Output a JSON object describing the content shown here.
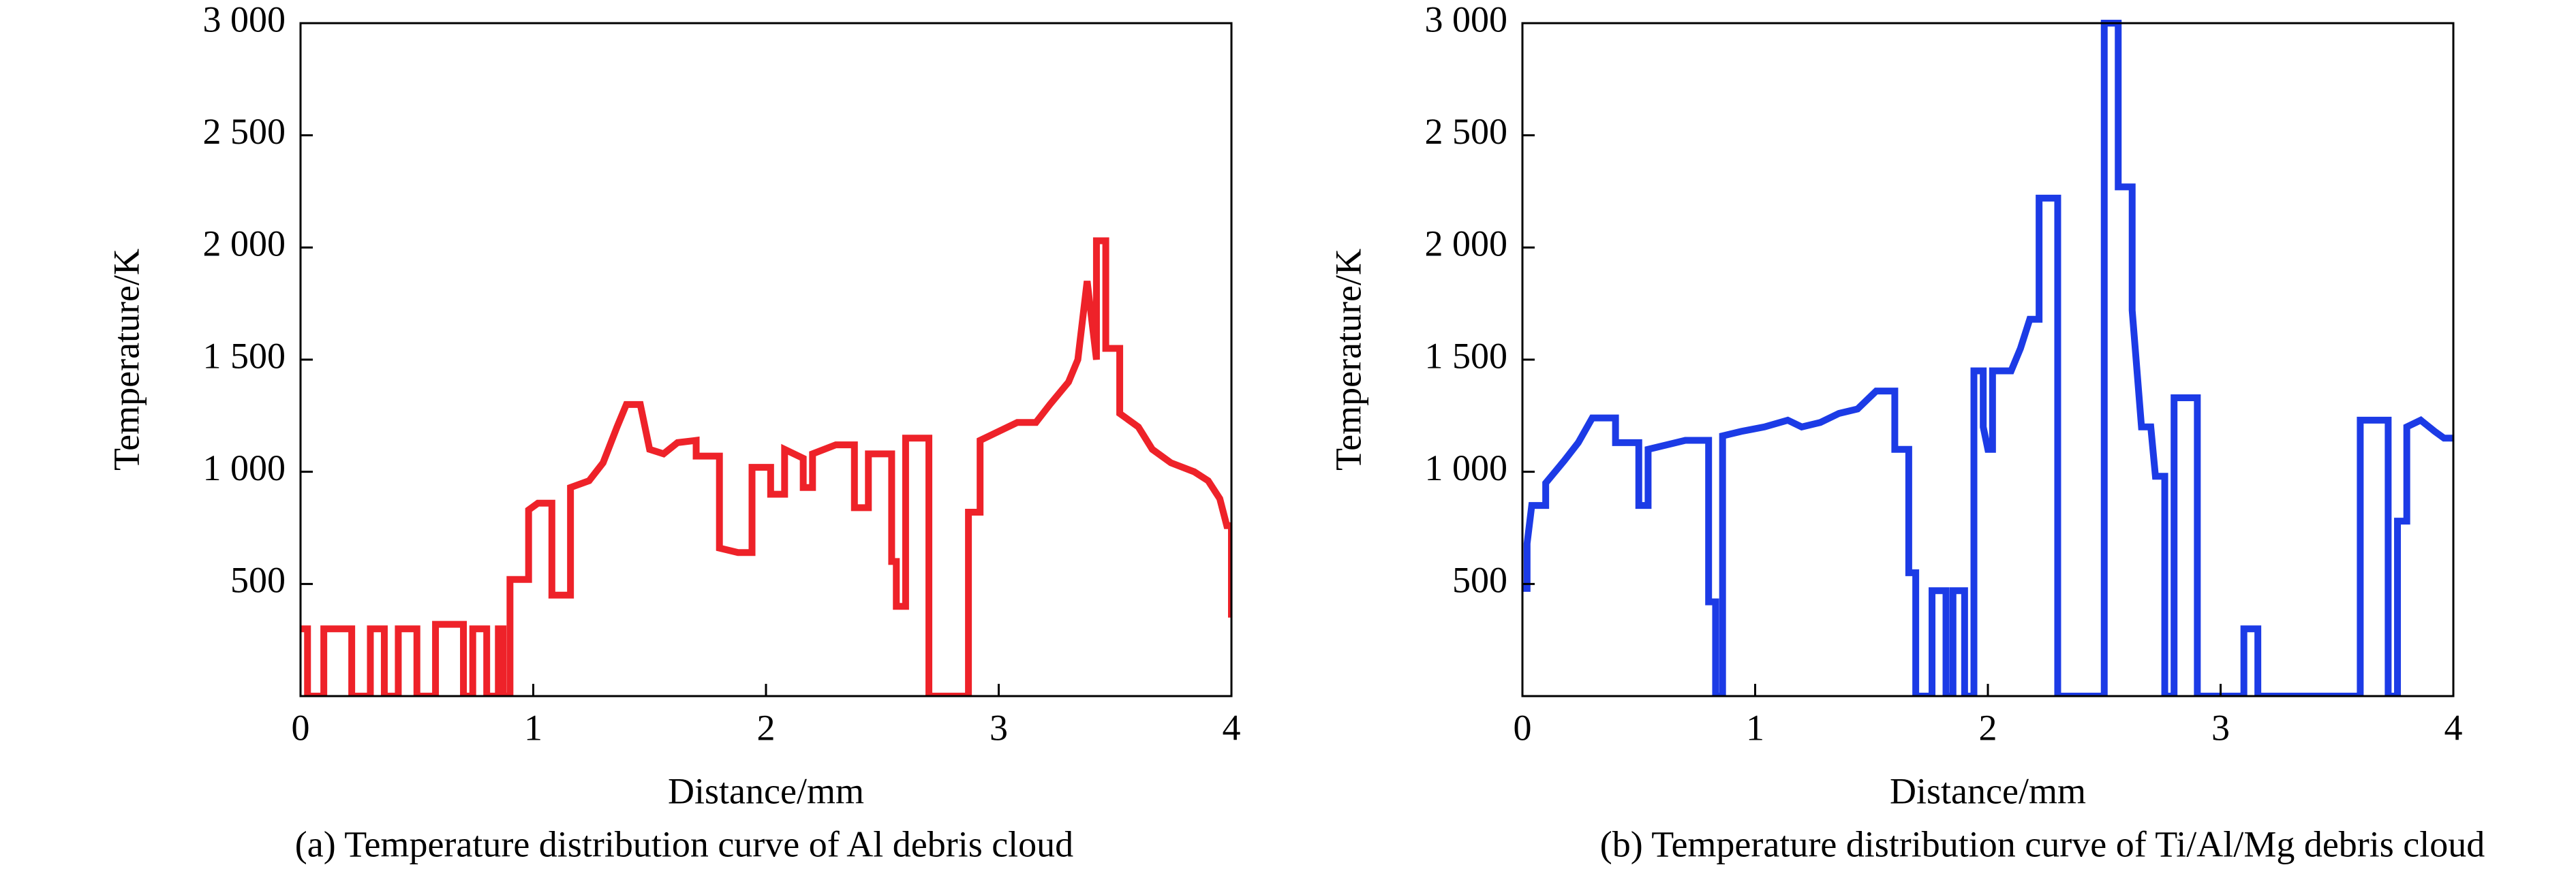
{
  "chart_data": [
    {
      "type": "line",
      "xlabel": "Distance/mm",
      "ylabel": "Temperature/K",
      "caption": "(a) Temperature distribution curve of Al debris cloud",
      "color": "#ee2229",
      "xlim": [
        0,
        4
      ],
      "ylim": [
        0,
        3000
      ],
      "xticks": [
        0,
        1,
        2,
        3,
        4
      ],
      "yticks": [
        500,
        {
          "value": 1000,
          "label": "1 000"
        },
        {
          "value": 1500,
          "label": "1 500"
        },
        {
          "value": 2000,
          "label": "2 000"
        },
        {
          "value": 2500,
          "label": "2 500"
        },
        {
          "value": 3000,
          "label": "3 000"
        }
      ],
      "x": [
        0,
        0.03,
        0.03,
        0.1,
        0.1,
        0.22,
        0.22,
        0.3,
        0.3,
        0.36,
        0.36,
        0.42,
        0.42,
        0.5,
        0.5,
        0.58,
        0.58,
        0.7,
        0.7,
        0.74,
        0.74,
        0.8,
        0.8,
        0.85,
        0.85,
        0.87,
        0.87,
        0.9,
        0.9,
        0.98,
        0.98,
        1.02,
        1.08,
        1.08,
        1.16,
        1.16,
        1.24,
        1.3,
        1.36,
        1.4,
        1.46,
        1.5,
        1.56,
        1.62,
        1.7,
        1.7,
        1.8,
        1.8,
        1.88,
        1.94,
        1.94,
        2.02,
        2.02,
        2.08,
        2.08,
        2.16,
        2.16,
        2.2,
        2.2,
        2.3,
        2.38,
        2.38,
        2.44,
        2.44,
        2.54,
        2.54,
        2.56,
        2.56,
        2.6,
        2.6,
        2.7,
        2.7,
        2.87,
        2.87,
        2.92,
        2.92,
        3.0,
        3.08,
        3.16,
        3.22,
        3.3,
        3.34,
        3.38,
        3.42,
        3.42,
        3.46,
        3.46,
        3.52,
        3.52,
        3.6,
        3.66,
        3.74,
        3.84,
        3.9,
        3.95,
        3.98,
        4.0,
        4.0
      ],
      "values": [
        300,
        300,
        0,
        0,
        300,
        300,
        0,
        0,
        300,
        300,
        0,
        0,
        300,
        300,
        0,
        0,
        320,
        320,
        0,
        0,
        300,
        300,
        0,
        0,
        300,
        300,
        0,
        0,
        520,
        520,
        830,
        860,
        860,
        450,
        450,
        930,
        960,
        1040,
        1200,
        1300,
        1300,
        1100,
        1080,
        1130,
        1140,
        1070,
        1070,
        660,
        640,
        640,
        1020,
        1020,
        900,
        900,
        1100,
        1060,
        930,
        930,
        1080,
        1120,
        1120,
        840,
        840,
        1080,
        1080,
        600,
        600,
        400,
        400,
        1150,
        1150,
        0,
        0,
        820,
        820,
        1140,
        1180,
        1220,
        1220,
        1300,
        1400,
        1500,
        1850,
        1500,
        2030,
        2030,
        1550,
        1550,
        1260,
        1200,
        1100,
        1040,
        1000,
        960,
        880,
        760,
        760,
        350
      ]
    },
    {
      "type": "line",
      "xlabel": "Distance/mm",
      "ylabel": "Temperature/K",
      "caption": "(b) Temperature distribution curve of Ti/Al/Mg debris cloud",
      "color": "#1c3be6",
      "xlim": [
        0,
        4
      ],
      "ylim": [
        0,
        3000
      ],
      "xticks": [
        0,
        1,
        2,
        3,
        4
      ],
      "yticks": [
        500,
        {
          "value": 1000,
          "label": "1 000"
        },
        {
          "value": 1500,
          "label": "1 500"
        },
        {
          "value": 2000,
          "label": "2 000"
        },
        {
          "value": 2500,
          "label": "2 500"
        },
        {
          "value": 3000,
          "label": "3 000"
        }
      ],
      "x": [
        0,
        0.02,
        0.02,
        0.04,
        0.1,
        0.1,
        0.18,
        0.24,
        0.3,
        0.4,
        0.4,
        0.5,
        0.5,
        0.54,
        0.54,
        0.62,
        0.7,
        0.8,
        0.8,
        0.83,
        0.83,
        0.86,
        0.86,
        0.94,
        1.04,
        1.14,
        1.2,
        1.28,
        1.36,
        1.44,
        1.52,
        1.6,
        1.6,
        1.66,
        1.66,
        1.69,
        1.69,
        1.76,
        1.76,
        1.82,
        1.82,
        1.85,
        1.85,
        1.9,
        1.9,
        1.94,
        1.94,
        1.98,
        1.98,
        2.0,
        2.02,
        2.02,
        2.1,
        2.14,
        2.18,
        2.22,
        2.22,
        2.3,
        2.3,
        2.5,
        2.5,
        2.56,
        2.56,
        2.62,
        2.62,
        2.66,
        2.7,
        2.72,
        2.76,
        2.76,
        2.8,
        2.8,
        2.9,
        2.9,
        3.1,
        3.1,
        3.16,
        3.16,
        3.6,
        3.6,
        3.72,
        3.72,
        3.76,
        3.76,
        3.8,
        3.8,
        3.86,
        3.92,
        3.96,
        4.0
      ],
      "values": [
        480,
        480,
        680,
        850,
        850,
        950,
        1050,
        1130,
        1240,
        1240,
        1130,
        1130,
        850,
        850,
        1100,
        1120,
        1140,
        1140,
        420,
        420,
        0,
        0,
        1160,
        1180,
        1200,
        1230,
        1200,
        1220,
        1260,
        1280,
        1360,
        1360,
        1100,
        1100,
        550,
        550,
        0,
        0,
        470,
        470,
        0,
        0,
        470,
        470,
        0,
        0,
        1450,
        1450,
        1200,
        1100,
        1100,
        1450,
        1450,
        1550,
        1680,
        1680,
        2220,
        2220,
        0,
        0,
        3000,
        3000,
        2270,
        2270,
        1720,
        1200,
        1200,
        980,
        980,
        0,
        0,
        1330,
        1330,
        0,
        0,
        300,
        300,
        0,
        0,
        1230,
        1230,
        0,
        0,
        780,
        780,
        1200,
        1230,
        1180,
        1150,
        1150
      ]
    }
  ]
}
